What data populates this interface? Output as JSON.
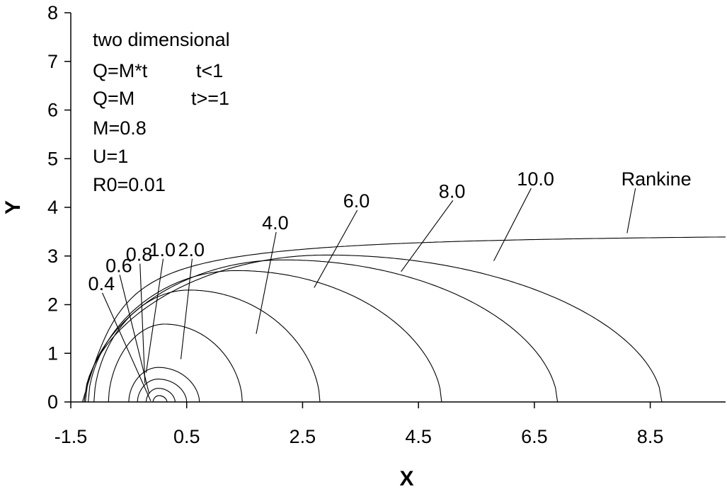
{
  "chart_data": {
    "type": "line",
    "title": "",
    "xlabel": "X",
    "ylabel": "Y",
    "xlim": [
      -1.5,
      9.8
    ],
    "ylim": [
      0,
      8
    ],
    "xticks": [
      "-1.5",
      "0.5",
      "2.5",
      "4.5",
      "6.5",
      "8.5"
    ],
    "xtick_values": [
      -1.5,
      0.5,
      2.5,
      4.5,
      6.5,
      8.5
    ],
    "yticks": [
      "0",
      "1",
      "2",
      "3",
      "4",
      "5",
      "6",
      "7",
      "8"
    ],
    "ytick_values": [
      0,
      1,
      2,
      3,
      4,
      5,
      6,
      7,
      8
    ],
    "grid": false,
    "annotations": [
      {
        "text": "two dimensional"
      },
      {
        "text": "Q=M*t",
        "condition": "t<1"
      },
      {
        "text": "Q=M",
        "condition": "t>=1"
      },
      {
        "text": "M=0.8"
      },
      {
        "text": "U=1"
      },
      {
        "text": "R0=0.01"
      }
    ],
    "series": [
      {
        "name": "0.4",
        "x_left": -0.08,
        "x_right": 0.16,
        "y_max": 0.13,
        "label_at": [
          -1.2,
          2.3
        ],
        "leader_to": [
          -0.12,
          0.02
        ]
      },
      {
        "name": "0.6",
        "x_left": -0.2,
        "x_right": 0.3,
        "y_max": 0.28,
        "label_at": [
          -0.9,
          2.67
        ],
        "leader_to": [
          -0.15,
          0.18
        ]
      },
      {
        "name": "0.8",
        "x_left": -0.35,
        "x_right": 0.5,
        "y_max": 0.47,
        "label_at": [
          -0.55,
          2.9
        ],
        "leader_to": [
          -0.22,
          0.38
        ]
      },
      {
        "name": "1.0",
        "x_left": -0.5,
        "x_right": 0.72,
        "y_max": 0.71,
        "label_at": [
          -0.15,
          3.0
        ],
        "leader_to": [
          -0.2,
          0.6
        ]
      },
      {
        "name": "2.0",
        "x_left": -0.85,
        "x_right": 1.46,
        "y_max": 1.6,
        "label_at": [
          0.35,
          3.0
        ],
        "leader_to": [
          0.4,
          0.88
        ]
      },
      {
        "name": "4.0",
        "x_left": -1.1,
        "x_right": 2.8,
        "y_max": 2.3,
        "label_at": [
          1.8,
          3.55
        ],
        "leader_to": [
          1.7,
          1.4
        ]
      },
      {
        "name": "6.0",
        "x_left": -1.2,
        "x_right": 4.9,
        "y_max": 2.7,
        "label_at": [
          3.2,
          4.0
        ],
        "leader_to": [
          2.7,
          2.35
        ]
      },
      {
        "name": "8.0",
        "x_left": -1.25,
        "x_right": 6.9,
        "y_max": 2.92,
        "label_at": [
          4.85,
          4.2
        ],
        "leader_to": [
          4.2,
          2.68
        ]
      },
      {
        "name": "10.0",
        "x_left": -1.27,
        "x_right": 8.7,
        "y_max": 3.02,
        "label_at": [
          6.2,
          4.45
        ],
        "leader_to": [
          5.8,
          2.9
        ]
      },
      {
        "name": "Rankine",
        "x_left": -1.3,
        "x_right": 9.8,
        "y_max": 3.5,
        "label_at": [
          8.0,
          4.45
        ],
        "leader_to": [
          8.1,
          3.47
        ]
      }
    ]
  }
}
